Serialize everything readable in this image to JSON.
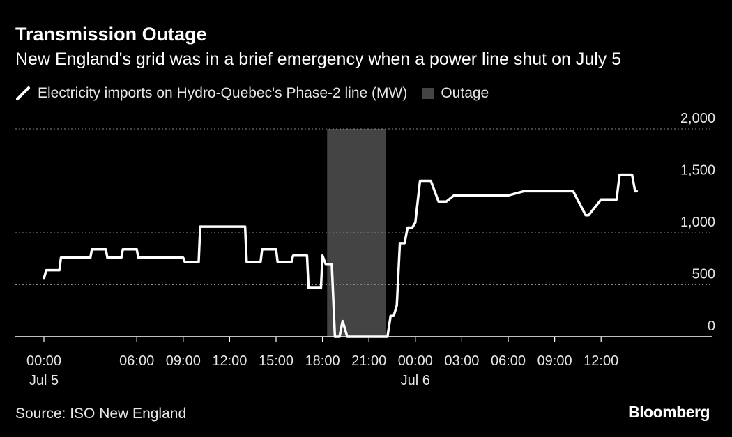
{
  "chart_data": {
    "type": "line",
    "title": "Transmission Outage",
    "subtitle": "New England's grid was in a brief emergency when a power line shut on July 5",
    "xlabel": "",
    "ylabel": "",
    "ylim": [
      0,
      2000
    ],
    "xlim_hours": [
      -1,
      43
    ],
    "grid": true,
    "legend_position": "top-left",
    "series": [
      {
        "name": "Electricity imports on Hydro-Quebec's Phase-2 line (MW)",
        "color": "#ffffff",
        "x": [
          0,
          0.15,
          1,
          1.1,
          1.7,
          3,
          3.1,
          4,
          4.1,
          5,
          5.1,
          6,
          6.1,
          9,
          9.1,
          10,
          10.1,
          13,
          13.1,
          14,
          14.1,
          15,
          15.1,
          16,
          16.1,
          17,
          17.1,
          17.9,
          18,
          18.2,
          18.6,
          18.8,
          19.1,
          19.3,
          19.6,
          20,
          22,
          22.2,
          22.4,
          22.6,
          22.8,
          23,
          23.3,
          23.5,
          23.8,
          24,
          24.3,
          25,
          25.5,
          26,
          26.5,
          27,
          28,
          29,
          30,
          31,
          32,
          33,
          33.2,
          34,
          34.2,
          35,
          35.2,
          36,
          36.2,
          37,
          37.2,
          38,
          38.2,
          38.3
        ],
        "values": [
          560,
          640,
          640,
          760,
          760,
          760,
          840,
          840,
          760,
          760,
          840,
          840,
          760,
          760,
          720,
          720,
          1060,
          1060,
          720,
          720,
          840,
          840,
          720,
          720,
          780,
          780,
          470,
          470,
          780,
          700,
          700,
          0,
          0,
          150,
          0,
          0,
          0,
          0,
          200,
          200,
          300,
          900,
          900,
          1050,
          1050,
          1100,
          1500,
          1500,
          1300,
          1300,
          1360,
          1360,
          1360,
          1360,
          1360,
          1400,
          1400,
          1400,
          1400,
          1400,
          1400,
          1170,
          1170,
          1320,
          1320,
          1320,
          1560,
          1560,
          1400,
          1400
        ]
      },
      {
        "name": "Outage",
        "color": "#444444",
        "type": "area",
        "range": [
          18.3,
          22.1
        ]
      }
    ],
    "x_ticks": [
      {
        "value": 0,
        "label": "00:00",
        "sublabel": "Jul 5"
      },
      {
        "value": 6,
        "label": "06:00",
        "sublabel": ""
      },
      {
        "value": 9,
        "label": "09:00",
        "sublabel": ""
      },
      {
        "value": 12,
        "label": "12:00",
        "sublabel": ""
      },
      {
        "value": 15,
        "label": "15:00",
        "sublabel": ""
      },
      {
        "value": 18,
        "label": "18:00",
        "sublabel": ""
      },
      {
        "value": 21,
        "label": "21:00",
        "sublabel": ""
      },
      {
        "value": 24,
        "label": "00:00",
        "sublabel": "Jul 6"
      },
      {
        "value": 27,
        "label": "03:00",
        "sublabel": ""
      },
      {
        "value": 30,
        "label": "06:00",
        "sublabel": ""
      },
      {
        "value": 33,
        "label": "09:00",
        "sublabel": ""
      },
      {
        "value": 36,
        "label": "12:00",
        "sublabel": ""
      }
    ],
    "y_ticks": [
      {
        "value": 0,
        "label": "0"
      },
      {
        "value": 500,
        "label": "500"
      },
      {
        "value": 1000,
        "label": "1,000"
      },
      {
        "value": 1500,
        "label": "1,500"
      },
      {
        "value": 2000,
        "label": "2,000"
      }
    ]
  },
  "legend": {
    "line_label": "Electricity imports on Hydro-Quebec's Phase-2 line (MW)",
    "box_label": "Outage"
  },
  "footer": {
    "source": "Source: ISO New England",
    "brand": "Bloomberg"
  }
}
